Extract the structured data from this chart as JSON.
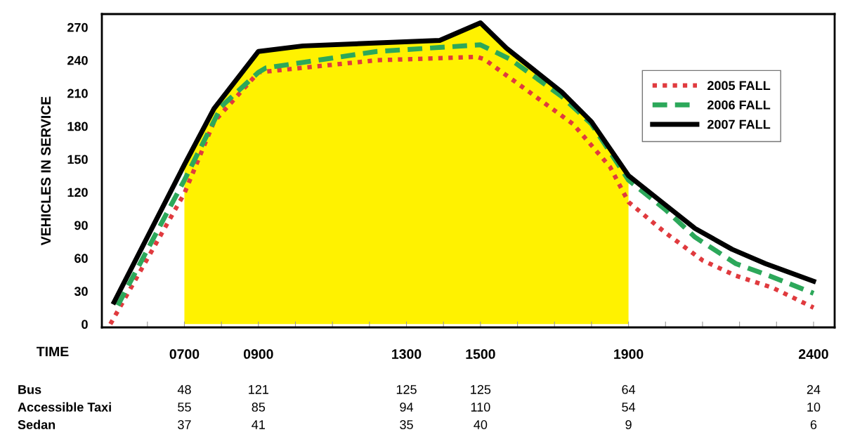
{
  "chart_data": {
    "type": "line",
    "ylabel": "VEHICLES IN SERVICE",
    "xlabel": "TIME",
    "xlim": [
      477,
      2457
    ],
    "ylim": [
      -3,
      282
    ],
    "xticks": [
      {
        "value": 600,
        "label": null
      },
      {
        "value": 700,
        "label": "0700"
      },
      {
        "value": 800,
        "label": null
      },
      {
        "value": 900,
        "label": "0900"
      },
      {
        "value": 1000,
        "label": null
      },
      {
        "value": 1100,
        "label": null
      },
      {
        "value": 1200,
        "label": null
      },
      1300,
      {
        "value": 1400,
        "label": null
      },
      1500,
      {
        "value": 1600,
        "label": null
      },
      {
        "value": 1700,
        "label": null
      },
      {
        "value": 1800,
        "label": null
      },
      1900,
      {
        "value": 2000,
        "label": null
      },
      {
        "value": 2100,
        "label": null
      },
      {
        "value": 2200,
        "label": null
      },
      {
        "value": 2300,
        "label": null
      },
      2400
    ],
    "yticks": [
      0,
      30,
      60,
      90,
      120,
      150,
      180,
      210,
      240,
      270
    ],
    "grid": false,
    "legend": "top right",
    "series": [
      {
        "type": "area",
        "color": "#fff200",
        "x": [
          700,
          780,
          900,
          1020,
          1390,
          1500,
          1570,
          1720,
          1800,
          1900
        ],
        "values": [
          145,
          196,
          248,
          253,
          258,
          274,
          251,
          211,
          184,
          135
        ]
      },
      {
        "name": "2005 FALL",
        "color": "#e03a3e",
        "line_style": "dotted",
        "x": [
          500,
          700,
          780,
          900,
          1220,
          1490,
          1510,
          1620,
          1750,
          1850,
          1900,
          2000,
          2100,
          2190,
          2290,
          2400
        ],
        "values": [
          0,
          119,
          184,
          229,
          240,
          243,
          241,
          214,
          182,
          143,
          111,
          83,
          58,
          44,
          33,
          15
        ]
      },
      {
        "name": "2006 FALL",
        "color": "#2ca85a",
        "line_style": "dashed",
        "x": [
          520,
          700,
          800,
          900,
          920,
          1220,
          1500,
          1580,
          1720,
          1800,
          1900,
          2000,
          2080,
          2190,
          2280,
          2400
        ],
        "values": [
          17,
          131,
          198,
          229,
          233,
          248,
          254,
          241,
          207,
          182,
          131,
          104,
          79,
          55,
          44,
          28
        ]
      },
      {
        "name": "2007 FALL",
        "color": "#000000",
        "line_style": "solid",
        "x": [
          510,
          700,
          780,
          900,
          1020,
          1390,
          1500,
          1570,
          1720,
          1800,
          1900,
          1990,
          2080,
          2180,
          2270,
          2400
        ],
        "values": [
          20,
          145,
          196,
          248,
          253,
          258,
          274,
          251,
          211,
          184,
          135,
          111,
          87,
          68,
          55,
          39
        ]
      }
    ],
    "annotations": [
      "Bus",
      "48",
      "121",
      "125",
      "125",
      "64",
      "24",
      "Accessible Taxi",
      "55",
      "85",
      "94",
      "110",
      "54",
      "10",
      "Sedan",
      "37",
      "41",
      "35",
      "40",
      "9",
      "6"
    ]
  }
}
